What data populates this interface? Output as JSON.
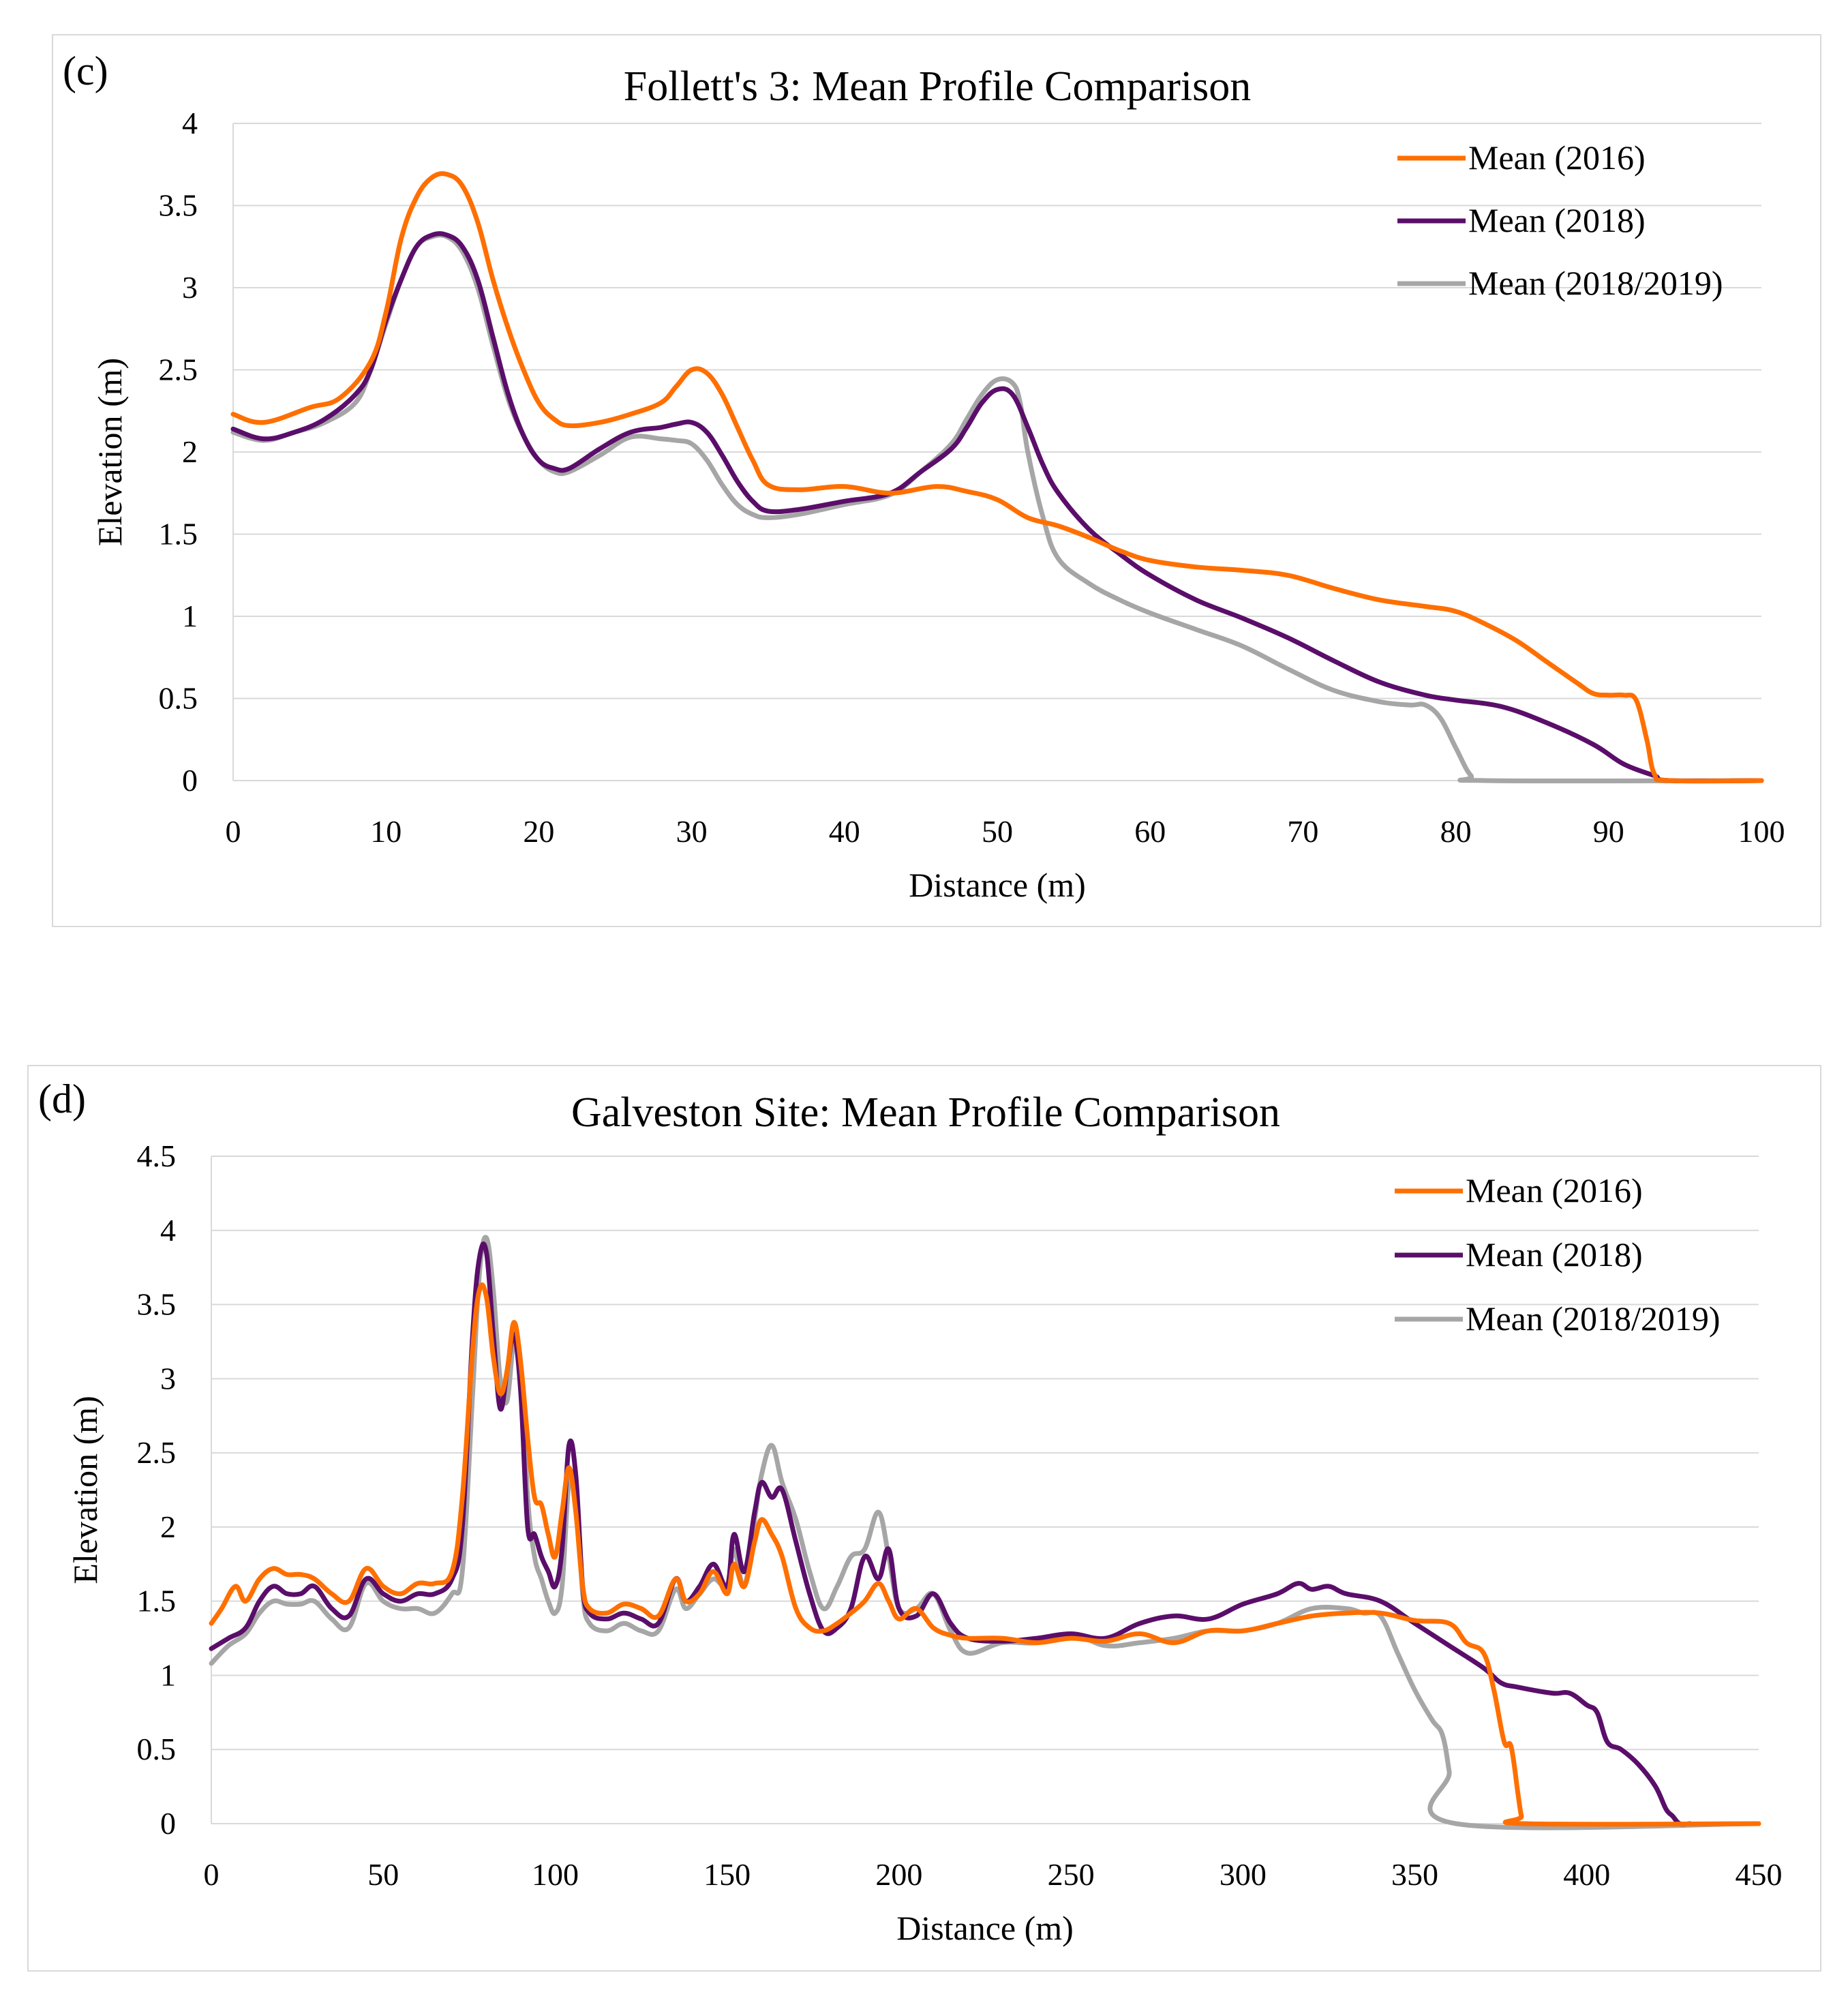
{
  "colors": {
    "s2016": "#FF6F00",
    "s2018": "#5A0E6A",
    "s1819": "#A6A6A6",
    "grid": "#D9D9D9"
  },
  "chart_data": [
    {
      "panel_label": "(c)",
      "type": "line",
      "title": "Follett's 3: Mean Profile Comparison",
      "xlabel": "Distance (m)",
      "ylabel": "Elevation (m)",
      "xlim": [
        0,
        100
      ],
      "ylim": [
        0,
        4
      ],
      "xticks": [
        0,
        10,
        20,
        30,
        40,
        50,
        60,
        70,
        80,
        90,
        100
      ],
      "yticks": [
        0,
        0.5,
        1,
        1.5,
        2,
        2.5,
        3,
        3.5,
        4
      ],
      "ytick_labels": [
        "0",
        "0.5",
        "1",
        "1.5",
        "2",
        "2.5",
        "3",
        "3.5",
        "4"
      ],
      "legend_position": "top-right",
      "series": [
        {
          "name": "Mean (2016)",
          "color_key": "s2016",
          "x": [
            0,
            2,
            5,
            7,
            9,
            10,
            11,
            12,
            13,
            14,
            15,
            16,
            17,
            18,
            19,
            20,
            21,
            22,
            24,
            26,
            28,
            29,
            30,
            31,
            32,
            33,
            34,
            35,
            37,
            40,
            43,
            46,
            48,
            50,
            52,
            54,
            56,
            58,
            60,
            63,
            66,
            69,
            72,
            75,
            78,
            80,
            82,
            84,
            86,
            88,
            89,
            90,
            91,
            91.8,
            92.5,
            93,
            94,
            100
          ],
          "y": [
            2.23,
            2.18,
            2.27,
            2.33,
            2.55,
            2.85,
            3.3,
            3.55,
            3.67,
            3.69,
            3.62,
            3.4,
            3.05,
            2.75,
            2.5,
            2.3,
            2.2,
            2.16,
            2.18,
            2.23,
            2.3,
            2.4,
            2.5,
            2.48,
            2.35,
            2.15,
            1.95,
            1.8,
            1.77,
            1.79,
            1.75,
            1.79,
            1.76,
            1.71,
            1.6,
            1.55,
            1.48,
            1.4,
            1.34,
            1.3,
            1.28,
            1.25,
            1.17,
            1.1,
            1.06,
            1.03,
            0.95,
            0.85,
            0.72,
            0.59,
            0.53,
            0.52,
            0.52,
            0.49,
            0.25,
            0.04,
            0.0,
            0.0
          ]
        },
        {
          "name": "Mean (2018)",
          "color_key": "s2018",
          "x": [
            0,
            2,
            4,
            6,
            8,
            9,
            10,
            11,
            12,
            13,
            14,
            15,
            16,
            17,
            18,
            19,
            20,
            21,
            22,
            24,
            26,
            28,
            29,
            30,
            31,
            32,
            33,
            34,
            35,
            37,
            40,
            43,
            45,
            47,
            48,
            49,
            50,
            51,
            52,
            53,
            54,
            56,
            58,
            60,
            63,
            66,
            69,
            72,
            75,
            78,
            80,
            83,
            86,
            89,
            91,
            93,
            94,
            100
          ],
          "y": [
            2.14,
            2.08,
            2.12,
            2.2,
            2.35,
            2.5,
            2.8,
            3.05,
            3.25,
            3.32,
            3.32,
            3.25,
            3.05,
            2.7,
            2.35,
            2.1,
            1.95,
            1.9,
            1.9,
            2.02,
            2.12,
            2.15,
            2.17,
            2.18,
            2.12,
            1.98,
            1.82,
            1.7,
            1.64,
            1.65,
            1.7,
            1.75,
            1.88,
            2.02,
            2.15,
            2.3,
            2.38,
            2.35,
            2.15,
            1.92,
            1.75,
            1.53,
            1.38,
            1.25,
            1.1,
            0.99,
            0.87,
            0.73,
            0.6,
            0.52,
            0.49,
            0.45,
            0.35,
            0.22,
            0.1,
            0.03,
            0.0,
            0.0
          ]
        },
        {
          "name": "Mean (2018/2019)",
          "color_key": "s1819",
          "x": [
            0,
            2,
            4,
            6,
            8,
            9,
            10,
            11,
            12,
            13,
            14,
            15,
            16,
            17,
            18,
            19,
            20,
            21,
            22,
            24,
            26,
            28,
            29,
            30,
            31,
            32,
            33,
            34,
            35,
            37,
            40,
            43,
            45,
            47,
            48,
            49,
            50,
            51,
            51.5,
            52,
            53,
            54,
            56,
            58,
            60,
            63,
            66,
            69,
            72,
            75,
            77,
            78,
            79,
            80,
            81,
            82,
            100
          ],
          "y": [
            2.12,
            2.07,
            2.12,
            2.18,
            2.3,
            2.5,
            2.78,
            3.05,
            3.25,
            3.31,
            3.31,
            3.22,
            3.0,
            2.65,
            2.32,
            2.1,
            1.95,
            1.88,
            1.88,
            1.98,
            2.09,
            2.08,
            2.07,
            2.05,
            1.95,
            1.8,
            1.68,
            1.62,
            1.6,
            1.62,
            1.68,
            1.74,
            1.88,
            2.05,
            2.2,
            2.35,
            2.44,
            2.42,
            2.3,
            2.0,
            1.6,
            1.35,
            1.2,
            1.1,
            1.02,
            0.92,
            0.82,
            0.68,
            0.55,
            0.48,
            0.46,
            0.46,
            0.38,
            0.2,
            0.03,
            0.0,
            0.0
          ]
        }
      ]
    },
    {
      "panel_label": "(d)",
      "type": "line",
      "title": "Galveston Site: Mean Profile Comparison",
      "xlabel": "Distance (m)",
      "ylabel": "Elevation (m)",
      "xlim": [
        0,
        450
      ],
      "ylim": [
        0,
        4.5
      ],
      "xticks": [
        0,
        50,
        100,
        150,
        200,
        250,
        300,
        350,
        400,
        450
      ],
      "yticks": [
        0,
        0.5,
        1,
        1.5,
        2,
        2.5,
        3,
        3.5,
        4,
        4.5
      ],
      "ytick_labels": [
        "0",
        "0.5",
        "1",
        "1.5",
        "2",
        "2.5",
        "3",
        "3.5",
        "4",
        "4.5"
      ],
      "legend_position": "top-right",
      "series": [
        {
          "name": "Mean (2016)",
          "color_key": "s2016",
          "x": [
            0,
            3,
            7,
            10,
            14,
            18,
            22,
            26,
            30,
            35,
            40,
            45,
            50,
            55,
            60,
            65,
            70,
            73,
            76,
            78,
            80,
            82,
            84,
            86,
            88,
            90,
            92,
            94,
            96,
            98,
            100,
            102,
            104,
            106,
            108,
            110,
            115,
            120,
            125,
            130,
            135,
            138,
            142,
            146,
            150,
            152,
            155,
            158,
            160,
            163,
            166,
            170,
            174,
            178,
            182,
            186,
            190,
            194,
            197,
            200,
            205,
            210,
            215,
            220,
            230,
            240,
            250,
            260,
            270,
            280,
            290,
            300,
            310,
            320,
            330,
            340,
            350,
            360,
            365,
            370,
            373,
            376,
            378,
            380,
            381,
            382,
            450
          ],
          "y": [
            1.35,
            1.45,
            1.6,
            1.5,
            1.65,
            1.72,
            1.68,
            1.68,
            1.65,
            1.55,
            1.5,
            1.72,
            1.6,
            1.55,
            1.62,
            1.62,
            1.7,
            2.2,
            3.2,
            3.6,
            3.55,
            3.15,
            2.9,
            3.05,
            3.38,
            3.1,
            2.6,
            2.2,
            2.15,
            1.95,
            1.8,
            2.1,
            2.4,
            2.1,
            1.6,
            1.45,
            1.42,
            1.48,
            1.45,
            1.4,
            1.65,
            1.5,
            1.55,
            1.7,
            1.55,
            1.75,
            1.6,
            1.9,
            2.05,
            1.95,
            1.8,
            1.45,
            1.32,
            1.3,
            1.35,
            1.42,
            1.5,
            1.62,
            1.5,
            1.38,
            1.45,
            1.32,
            1.27,
            1.25,
            1.25,
            1.22,
            1.25,
            1.23,
            1.28,
            1.22,
            1.3,
            1.3,
            1.35,
            1.4,
            1.42,
            1.42,
            1.37,
            1.35,
            1.22,
            1.15,
            0.9,
            0.55,
            0.52,
            0.2,
            0.05,
            0.0,
            0.0
          ]
        },
        {
          "name": "Mean (2018)",
          "color_key": "s2018",
          "x": [
            0,
            5,
            10,
            14,
            18,
            22,
            26,
            30,
            35,
            40,
            45,
            50,
            55,
            60,
            65,
            70,
            73,
            76,
            78,
            80,
            82,
            84,
            86,
            88,
            90,
            92,
            94,
            96,
            98,
            100,
            102,
            104,
            106,
            108,
            110,
            115,
            120,
            125,
            130,
            135,
            138,
            142,
            146,
            150,
            152,
            155,
            158,
            160,
            163,
            166,
            170,
            174,
            178,
            182,
            186,
            190,
            194,
            197,
            200,
            205,
            210,
            215,
            220,
            230,
            240,
            250,
            260,
            270,
            280,
            290,
            300,
            310,
            316,
            320,
            325,
            330,
            340,
            350,
            360,
            370,
            375,
            380,
            390,
            395,
            400,
            403,
            406,
            410,
            415,
            420,
            423,
            425,
            427,
            430
          ],
          "y": [
            1.18,
            1.25,
            1.32,
            1.5,
            1.6,
            1.55,
            1.55,
            1.6,
            1.45,
            1.4,
            1.65,
            1.55,
            1.5,
            1.55,
            1.55,
            1.65,
            2.0,
            3.3,
            3.82,
            3.85,
            3.3,
            2.8,
            3.05,
            3.3,
            2.9,
            2.0,
            1.95,
            1.8,
            1.7,
            1.6,
            1.85,
            2.55,
            2.35,
            1.6,
            1.42,
            1.38,
            1.42,
            1.38,
            1.35,
            1.65,
            1.5,
            1.6,
            1.75,
            1.6,
            1.95,
            1.7,
            2.1,
            2.3,
            2.2,
            2.25,
            1.9,
            1.55,
            1.3,
            1.32,
            1.45,
            1.8,
            1.65,
            1.85,
            1.45,
            1.4,
            1.55,
            1.35,
            1.25,
            1.23,
            1.25,
            1.28,
            1.25,
            1.35,
            1.4,
            1.38,
            1.48,
            1.55,
            1.62,
            1.58,
            1.6,
            1.55,
            1.5,
            1.35,
            1.2,
            1.05,
            0.95,
            0.92,
            0.88,
            0.88,
            0.8,
            0.75,
            0.55,
            0.5,
            0.4,
            0.25,
            0.1,
            0.05,
            0.0,
            0.0
          ]
        },
        {
          "name": "Mean (2018/2019)",
          "color_key": "s1819",
          "x": [
            0,
            5,
            10,
            14,
            18,
            22,
            26,
            30,
            35,
            40,
            45,
            50,
            55,
            60,
            65,
            70,
            73,
            76,
            78,
            80,
            82,
            84,
            86,
            88,
            90,
            92,
            94,
            96,
            98,
            100,
            102,
            104,
            106,
            108,
            110,
            115,
            120,
            125,
            130,
            135,
            138,
            142,
            146,
            150,
            152,
            155,
            158,
            160,
            163,
            166,
            170,
            174,
            178,
            182,
            186,
            190,
            194,
            197,
            200,
            205,
            210,
            215,
            220,
            230,
            240,
            250,
            260,
            270,
            280,
            290,
            300,
            310,
            320,
            330,
            335,
            340,
            345,
            350,
            355,
            358,
            360,
            362,
            450
          ],
          "y": [
            1.08,
            1.2,
            1.28,
            1.42,
            1.5,
            1.48,
            1.48,
            1.5,
            1.38,
            1.32,
            1.62,
            1.5,
            1.45,
            1.45,
            1.42,
            1.55,
            1.7,
            2.9,
            3.72,
            3.95,
            3.6,
            3.0,
            2.85,
            3.25,
            3.1,
            2.2,
            1.8,
            1.65,
            1.5,
            1.42,
            1.6,
            2.3,
            2.25,
            1.55,
            1.35,
            1.3,
            1.35,
            1.3,
            1.3,
            1.58,
            1.45,
            1.55,
            1.65,
            1.6,
            1.85,
            1.6,
            2.05,
            2.35,
            2.55,
            2.3,
            2.05,
            1.7,
            1.45,
            1.6,
            1.8,
            1.85,
            2.1,
            1.8,
            1.45,
            1.45,
            1.55,
            1.3,
            1.15,
            1.22,
            1.22,
            1.28,
            1.2,
            1.22,
            1.25,
            1.3,
            1.3,
            1.35,
            1.45,
            1.45,
            1.42,
            1.4,
            1.15,
            0.9,
            0.7,
            0.6,
            0.35,
            0.0,
            0.0
          ]
        }
      ]
    }
  ]
}
